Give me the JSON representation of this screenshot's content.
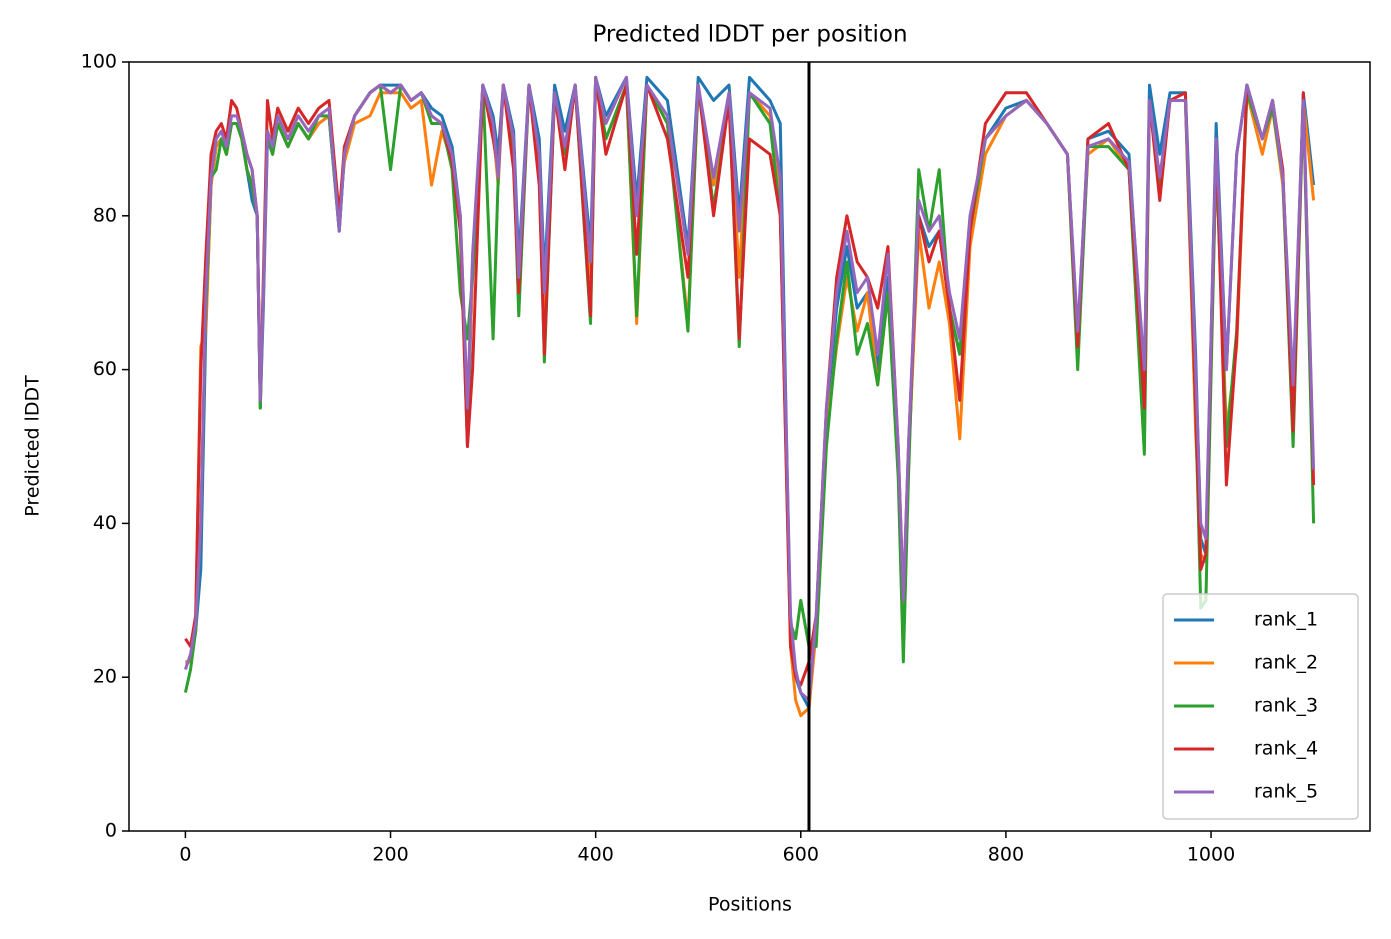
{
  "chart_data": {
    "type": "line",
    "title": "Predicted lDDT per position",
    "xlabel": "Positions",
    "ylabel": "Predicted lDDT",
    "xlim": [
      -55,
      1155
    ],
    "ylim": [
      0,
      100
    ],
    "xticks": [
      0,
      200,
      400,
      600,
      800,
      1000
    ],
    "yticks": [
      0,
      20,
      40,
      60,
      80,
      100
    ],
    "vline": 608,
    "legend": "lower right",
    "x": [
      0,
      5,
      10,
      15,
      20,
      25,
      30,
      35,
      40,
      45,
      50,
      55,
      60,
      65,
      70,
      73,
      76,
      80,
      85,
      90,
      100,
      110,
      120,
      130,
      140,
      150,
      155,
      165,
      180,
      190,
      200,
      210,
      220,
      230,
      240,
      250,
      260,
      268,
      275,
      280,
      290,
      300,
      305,
      310,
      320,
      325,
      335,
      345,
      350,
      360,
      370,
      380,
      395,
      400,
      410,
      430,
      440,
      450,
      470,
      490,
      500,
      515,
      530,
      540,
      550,
      570,
      580,
      590,
      595,
      600,
      608,
      615,
      625,
      635,
      645,
      655,
      665,
      675,
      685,
      695,
      700,
      705,
      715,
      725,
      735,
      745,
      755,
      765,
      780,
      800,
      820,
      840,
      860,
      870,
      880,
      900,
      920,
      935,
      940,
      950,
      960,
      975,
      985,
      990,
      995,
      1005,
      1015,
      1025,
      1035,
      1050,
      1060,
      1070,
      1080,
      1090,
      1100
    ],
    "series": [
      {
        "name": "rank_1",
        "color": "#1f77b4",
        "values": [
          22,
          22,
          26,
          34,
          66,
          84,
          89,
          90,
          88,
          92,
          92,
          90,
          86,
          82,
          80,
          55,
          68,
          90,
          88,
          92,
          89,
          92,
          90,
          92,
          93,
          78,
          88,
          93,
          96,
          97,
          97,
          97,
          95,
          96,
          94,
          93,
          89,
          80,
          50,
          74,
          97,
          93,
          88,
          97,
          91,
          74,
          97,
          90,
          72,
          97,
          91,
          97,
          76,
          98,
          93,
          98,
          82,
          98,
          95,
          76,
          98,
          95,
          97,
          80,
          98,
          95,
          92,
          25,
          20,
          18,
          16,
          27,
          54,
          68,
          76,
          68,
          70,
          60,
          72,
          48,
          28,
          48,
          80,
          76,
          78,
          68,
          62,
          78,
          90,
          94,
          95,
          92,
          88,
          64,
          90,
          91,
          88,
          58,
          97,
          88,
          96,
          96,
          62,
          38,
          36,
          92,
          60,
          88,
          97,
          90,
          95,
          85,
          56,
          96,
          84
        ]
      },
      {
        "name": "rank_2",
        "color": "#ff7f0e",
        "values": [
          22,
          22,
          27,
          63,
          65,
          84,
          89,
          90,
          88,
          92,
          92,
          90,
          86,
          84,
          80,
          56,
          70,
          91,
          88,
          92,
          89,
          92,
          90,
          92,
          93,
          80,
          87,
          92,
          93,
          96,
          96,
          96,
          94,
          95,
          84,
          91,
          87,
          80,
          55,
          72,
          97,
          91,
          84,
          97,
          89,
          70,
          97,
          87,
          68,
          96,
          88,
          97,
          72,
          98,
          90,
          97,
          66,
          97,
          92,
          66,
          97,
          84,
          96,
          72,
          96,
          93,
          82,
          24,
          17,
          15,
          16,
          26,
          52,
          63,
          72,
          65,
          70,
          58,
          70,
          48,
          28,
          48,
          78,
          68,
          74,
          66,
          51,
          76,
          88,
          93,
          95,
          92,
          88,
          64,
          88,
          90,
          86,
          58,
          95,
          84,
          95,
          95,
          52,
          36,
          35,
          88,
          52,
          63,
          96,
          88,
          94,
          84,
          55,
          95,
          82
        ]
      },
      {
        "name": "rank_3",
        "color": "#2ca02c",
        "values": [
          18,
          21,
          26,
          40,
          68,
          85,
          86,
          90,
          88,
          92,
          92,
          90,
          86,
          84,
          80,
          55,
          70,
          91,
          88,
          92,
          89,
          92,
          90,
          93,
          93,
          78,
          88,
          93,
          96,
          97,
          86,
          97,
          95,
          96,
          92,
          92,
          86,
          70,
          64,
          72,
          97,
          64,
          85,
          97,
          88,
          67,
          97,
          86,
          61,
          96,
          88,
          97,
          66,
          98,
          90,
          97,
          67,
          97,
          92,
          65,
          97,
          81,
          95,
          63,
          96,
          92,
          80,
          27,
          25,
          30,
          24,
          24,
          50,
          64,
          74,
          62,
          66,
          58,
          70,
          46,
          22,
          46,
          86,
          78,
          86,
          68,
          62,
          78,
          90,
          93,
          95,
          92,
          88,
          60,
          89,
          89,
          86,
          49,
          95,
          84,
          95,
          95,
          55,
          29,
          30,
          88,
          50,
          65,
          96,
          90,
          94,
          85,
          50,
          95,
          40
        ]
      },
      {
        "name": "rank_4",
        "color": "#d62728",
        "values": [
          25,
          24,
          28,
          60,
          75,
          88,
          91,
          92,
          90,
          95,
          94,
          91,
          88,
          86,
          80,
          56,
          72,
          95,
          90,
          94,
          91,
          94,
          92,
          94,
          95,
          80,
          89,
          93,
          96,
          97,
          96,
          97,
          95,
          96,
          93,
          92,
          87,
          78,
          50,
          60,
          97,
          90,
          86,
          97,
          86,
          70,
          97,
          84,
          62,
          96,
          86,
          97,
          67,
          98,
          88,
          97,
          75,
          97,
          90,
          72,
          97,
          80,
          95,
          64,
          90,
          88,
          80,
          24,
          20,
          19,
          22,
          28,
          55,
          72,
          80,
          74,
          72,
          68,
          76,
          50,
          30,
          50,
          80,
          74,
          78,
          68,
          56,
          78,
          92,
          96,
          96,
          92,
          88,
          63,
          90,
          92,
          86,
          55,
          95,
          82,
          95,
          96,
          55,
          34,
          36,
          90,
          45,
          64,
          97,
          90,
          95,
          86,
          52,
          96,
          45
        ]
      },
      {
        "name": "rank_5",
        "color": "#9467bd",
        "values": [
          21,
          23,
          27,
          40,
          70,
          85,
          90,
          91,
          89,
          93,
          93,
          91,
          88,
          86,
          80,
          56,
          70,
          91,
          89,
          93,
          90,
          93,
          91,
          93,
          94,
          78,
          88,
          93,
          96,
          97,
          96,
          97,
          95,
          96,
          93,
          92,
          88,
          80,
          55,
          75,
          97,
          92,
          85,
          97,
          90,
          72,
          97,
          88,
          70,
          96,
          89,
          97,
          74,
          98,
          92,
          98,
          80,
          97,
          93,
          75,
          97,
          85,
          96,
          78,
          96,
          94,
          85,
          28,
          21,
          18,
          17,
          28,
          55,
          70,
          78,
          70,
          72,
          62,
          75,
          50,
          30,
          50,
          82,
          78,
          80,
          70,
          64,
          80,
          90,
          93,
          95,
          92,
          88,
          65,
          89,
          90,
          87,
          60,
          95,
          85,
          95,
          95,
          60,
          40,
          38,
          90,
          60,
          88,
          97,
          90,
          95,
          85,
          58,
          95,
          47
        ]
      }
    ]
  }
}
